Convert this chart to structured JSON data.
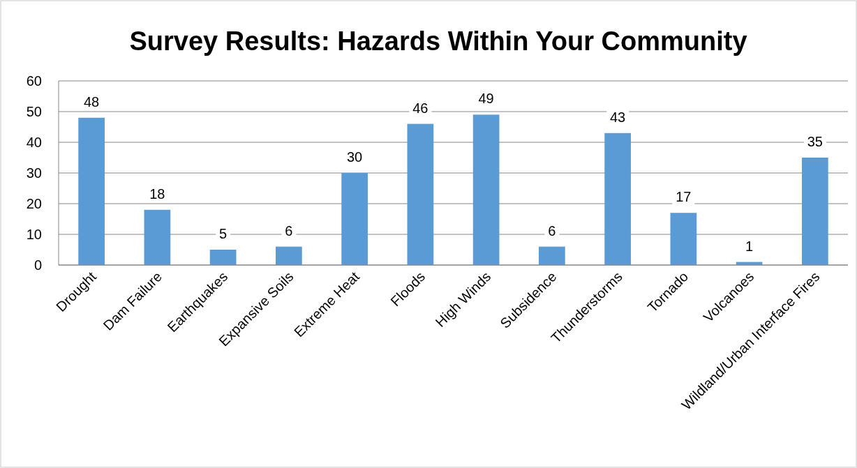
{
  "chart_data": {
    "type": "bar",
    "title": "Survey Results: Hazards Within Your Community",
    "categories": [
      "Drought",
      "Dam Failure",
      "Earthquakes",
      "Expansive Soils",
      "Extreme Heat",
      "Floods",
      "High Winds",
      "Subsidence",
      "Thunderstorms",
      "Tornado",
      "Volcanoes",
      "Wildland/Urban Interface Fires"
    ],
    "values": [
      48,
      18,
      5,
      6,
      30,
      46,
      49,
      6,
      43,
      17,
      1,
      35
    ],
    "color": "#5b9bd5",
    "ylim": [
      0,
      60
    ],
    "yticks": [
      0,
      10,
      20,
      30,
      40,
      50,
      60
    ],
    "grid": "y",
    "data_labels": true
  }
}
